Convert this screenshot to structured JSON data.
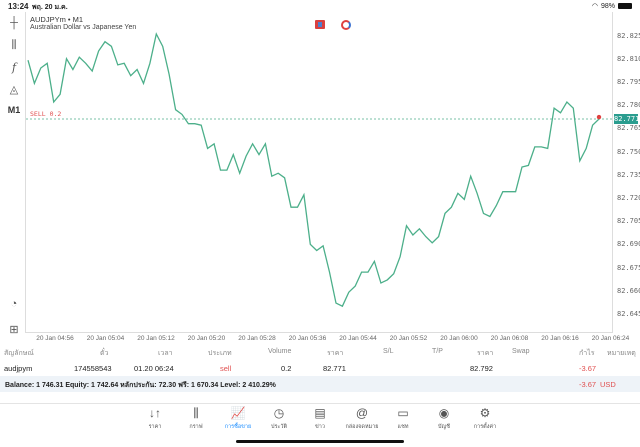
{
  "status": {
    "time": "13:24",
    "date": "พฤ. 20 ม.ค.",
    "battery": "98%"
  },
  "chart": {
    "symbol": "AUDJPYm • M1",
    "description": "Australian Dollar vs Japanese Yen",
    "timeframe": "M1",
    "sell_label": "SELL 0.2",
    "current_price": "82.771",
    "line_color": "#4caf8a",
    "sell_color": "#e05050",
    "y_labels": [
      "82.825",
      "82.810",
      "82.795",
      "82.780",
      "82.765",
      "82.750",
      "82.735",
      "82.720",
      "82.705",
      "82.690",
      "82.675",
      "82.660",
      "82.645"
    ],
    "x_labels": [
      "20 Jan 04:56",
      "20 Jan 05:04",
      "20 Jan 05:12",
      "20 Jan 05:20",
      "20 Jan 05:28",
      "20 Jan 05:36",
      "20 Jan 05:44",
      "20 Jan 05:52",
      "20 Jan 06:00",
      "20 Jan 06:08",
      "20 Jan 06:16",
      "20 Jan 06:24"
    ]
  },
  "chart_data": {
    "type": "line",
    "ylim": [
      82.645,
      82.825
    ],
    "values": [
      82.809,
      82.794,
      82.804,
      82.807,
      82.782,
      82.787,
      82.81,
      82.803,
      82.811,
      82.807,
      82.802,
      82.815,
      82.821,
      82.818,
      82.806,
      82.807,
      82.799,
      82.803,
      82.794,
      82.807,
      82.826,
      82.818,
      82.8,
      82.777,
      82.774,
      82.768,
      82.768,
      82.767,
      82.752,
      82.755,
      82.738,
      82.738,
      82.748,
      82.736,
      82.747,
      82.755,
      82.748,
      82.755,
      82.734,
      82.736,
      82.733,
      82.714,
      82.714,
      82.722,
      82.69,
      82.686,
      82.689,
      82.672,
      82.652,
      82.65,
      82.659,
      82.663,
      82.672,
      82.672,
      82.679,
      82.665,
      82.667,
      82.671,
      82.682,
      82.702,
      82.696,
      82.7,
      82.695,
      82.691,
      82.695,
      82.71,
      82.714,
      82.723,
      82.719,
      82.734,
      82.723,
      82.71,
      82.708,
      82.715,
      82.724,
      82.724,
      82.724,
      82.74,
      82.741,
      82.753,
      82.753,
      82.752,
      82.778,
      82.775,
      82.782,
      82.778,
      82.744,
      82.752,
      82.767,
      82.771
    ],
    "sell_level": 82.771
  },
  "table": {
    "headers": [
      "สัญลักษณ์",
      "ตั๋ว",
      "เวลา",
      "ประเภท",
      "Volume",
      "ราคา",
      "S/L",
      "T/P",
      "ราคา",
      "Swap",
      "กำไร",
      "หมายเหตุ"
    ],
    "row": {
      "symbol": "audjpym",
      "ticket": "174558543",
      "time": "01.20 06:24",
      "type": "sell",
      "volume": "0.2",
      "open_price": "82.771",
      "current_price": "82.792",
      "profit": "-3.67"
    },
    "balance": "Balance: 1 746.31 Equity: 1 742.64 หลักประกัน: 72.30 ฟรี: 1 670.34 Level: 2 410.29%",
    "total_profit": "-3.67",
    "currency": "USD"
  },
  "nav": [
    {
      "label": "ราคา",
      "icon": "↓↑"
    },
    {
      "label": "กราฟ",
      "icon": "⫼"
    },
    {
      "label": "การซื้อขาย",
      "icon": "📈"
    },
    {
      "label": "ประวัติ",
      "icon": "◷"
    },
    {
      "label": "ข่าว",
      "icon": "▤"
    },
    {
      "label": "กล่องจดหมาย",
      "icon": "@"
    },
    {
      "label": "แชท",
      "icon": "▭"
    },
    {
      "label": "บัญชี",
      "icon": "◉"
    },
    {
      "label": "การตั้งค่า",
      "icon": "⚙"
    }
  ]
}
